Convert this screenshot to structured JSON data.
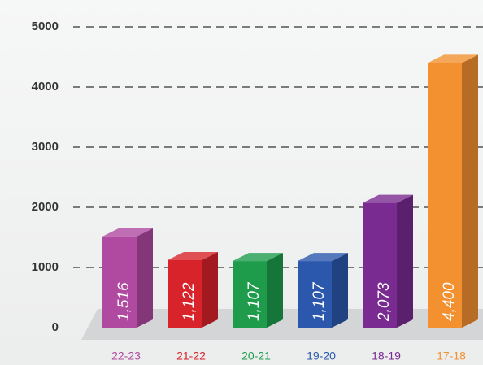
{
  "chart_data": {
    "type": "bar3d",
    "categories": [
      "22-23",
      "21-22",
      "20-21",
      "19-20",
      "18-19",
      "17-18"
    ],
    "values": [
      1516,
      1122,
      1107,
      1107,
      2073,
      4400
    ],
    "value_labels": [
      "1,516",
      "1,122",
      "1,107",
      "1,107",
      "2,073",
      "4,400"
    ],
    "colors": [
      "#b04aa0",
      "#d8232a",
      "#1e9c4c",
      "#2b58ac",
      "#7a2b92",
      "#f39130"
    ],
    "ylim": [
      0,
      5000
    ],
    "yticks": [
      0,
      1000,
      2000,
      3000,
      4000,
      5000
    ],
    "grid": true
  }
}
